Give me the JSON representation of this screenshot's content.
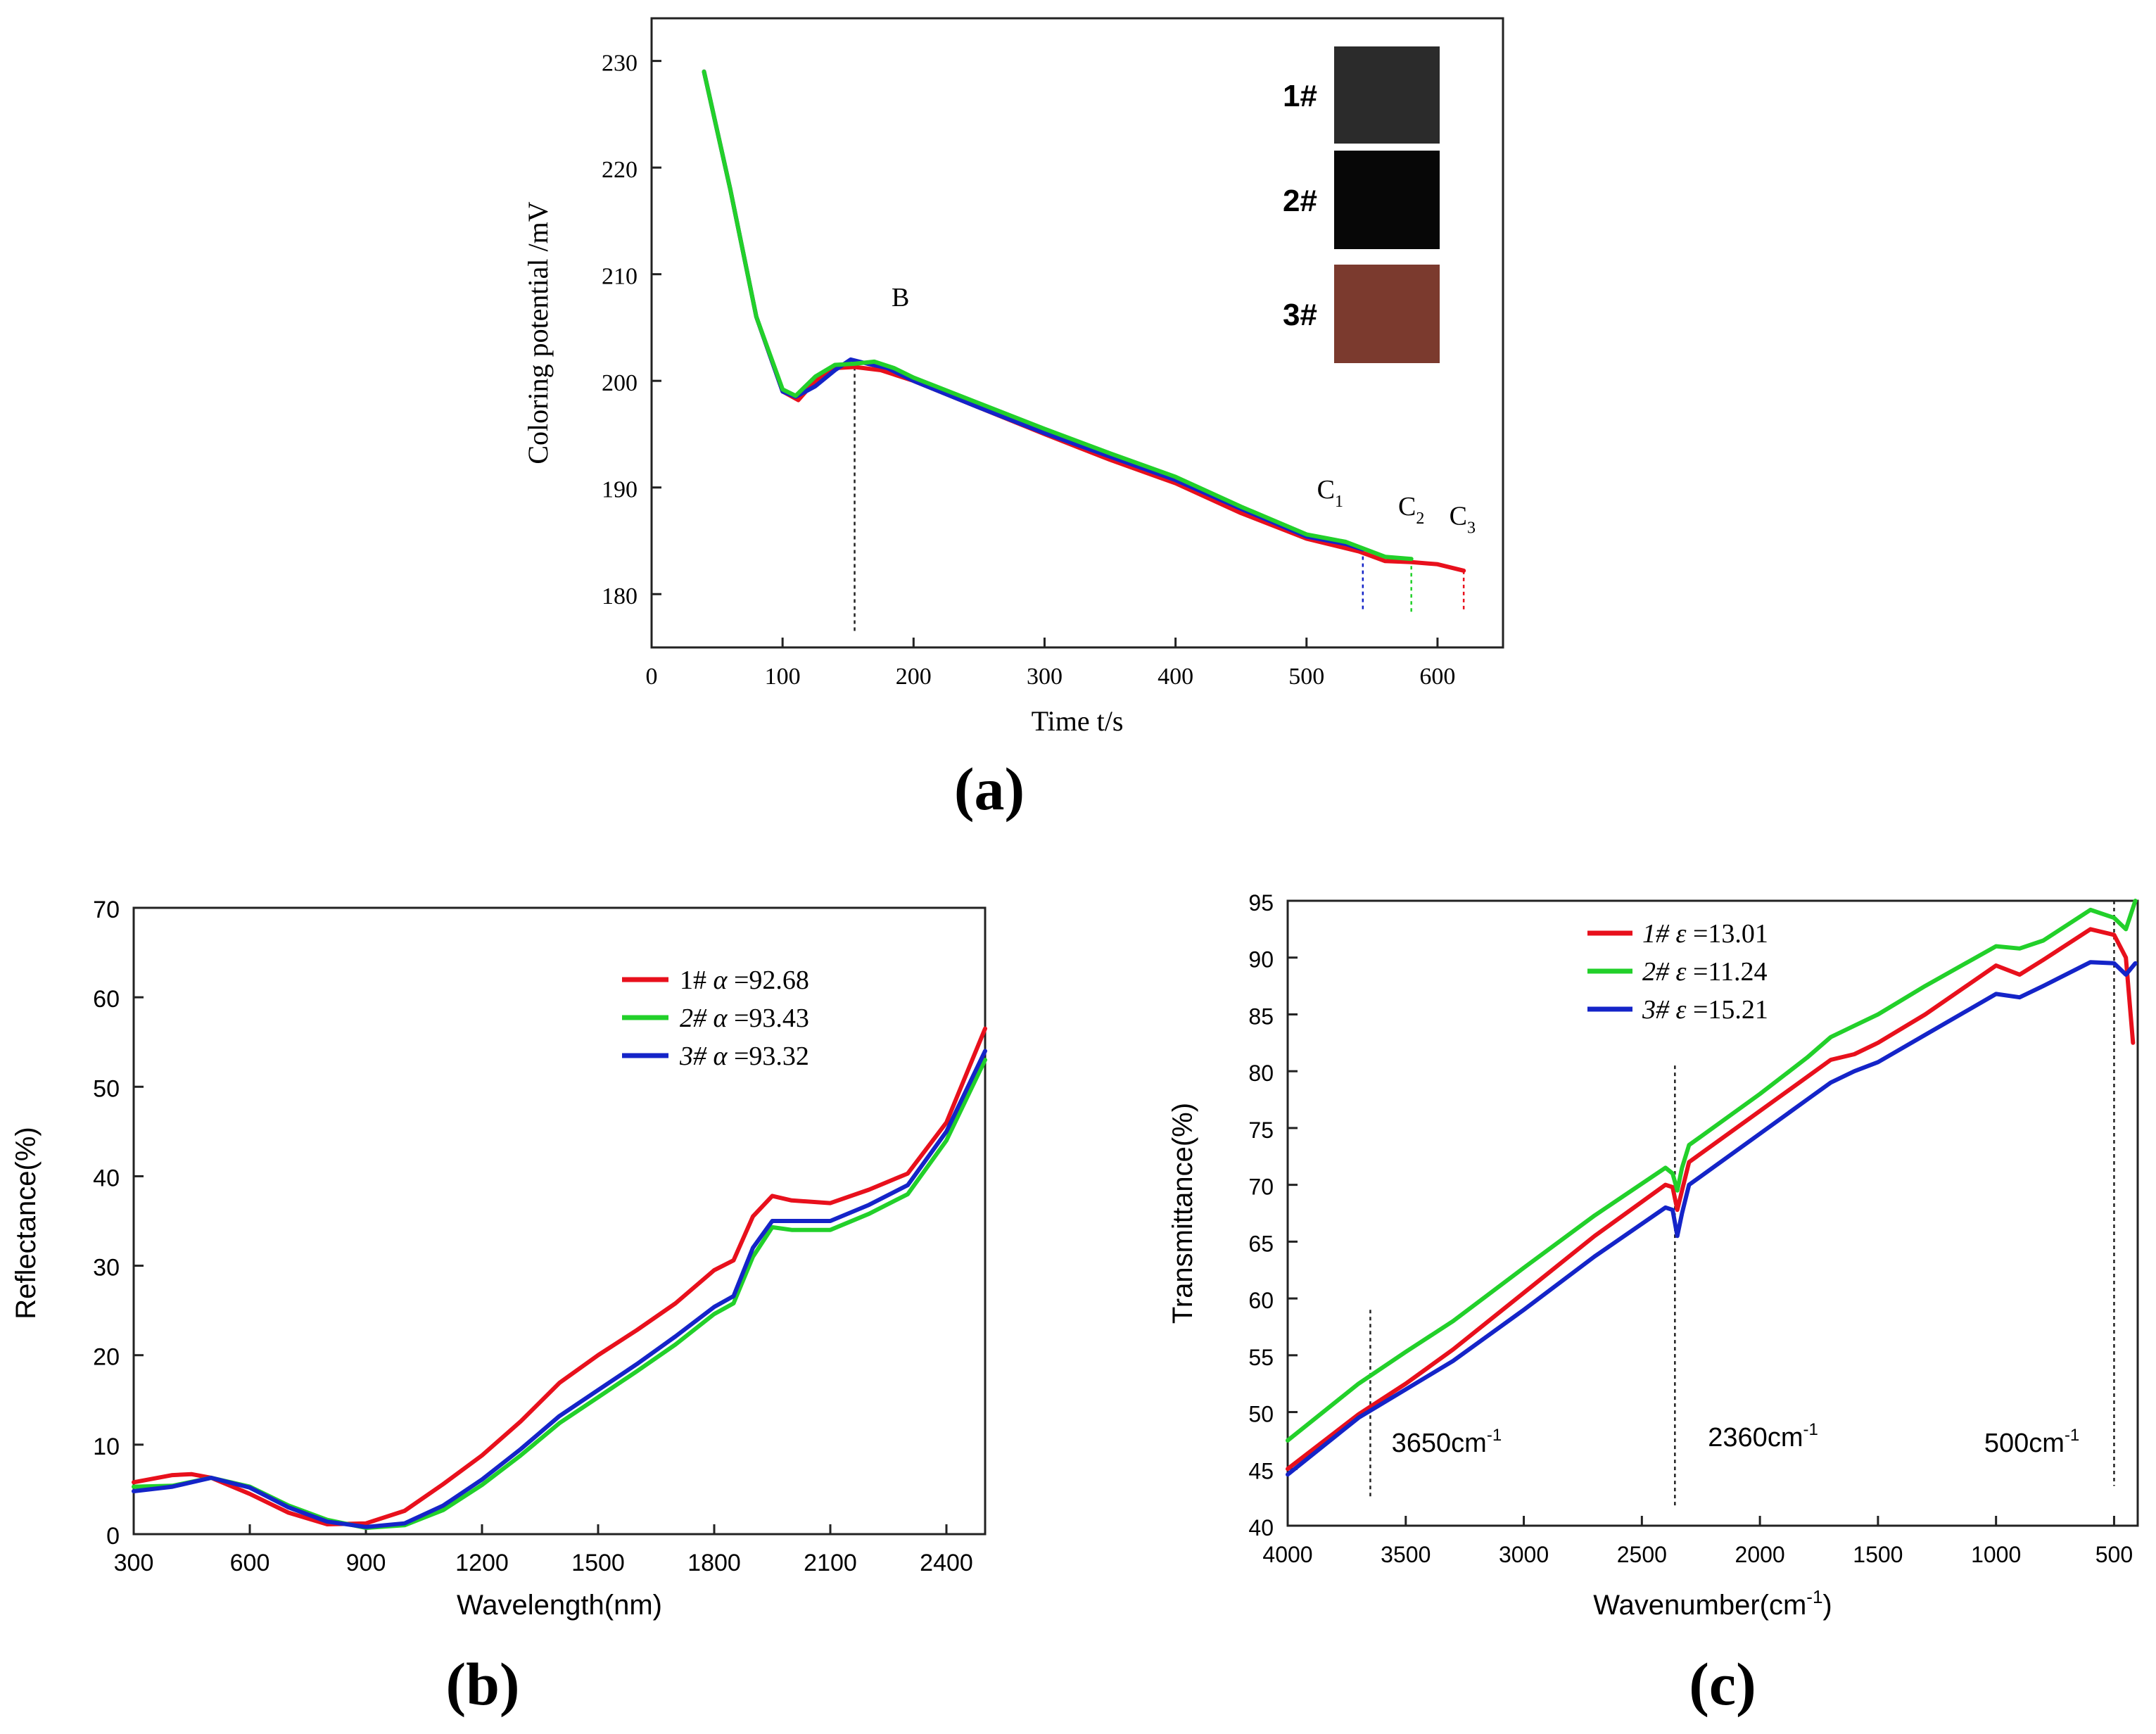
{
  "chart_data": [
    {
      "id": "a",
      "type": "line",
      "panel_label": "(a)",
      "xlabel": "Time t/s",
      "ylabel": "Coloring potential /mV",
      "xlim": [
        0,
        650
      ],
      "ylim": [
        175,
        234
      ],
      "xticks": [
        0,
        100,
        200,
        300,
        400,
        500,
        600
      ],
      "yticks": [
        180,
        190,
        200,
        210,
        220,
        230
      ],
      "series": [
        {
          "name": "3#",
          "color": "#e8101c",
          "x": [
            40,
            60,
            80,
            100,
            112,
            125,
            140,
            155,
            175,
            200,
            250,
            300,
            350,
            400,
            450,
            500,
            540,
            560,
            580,
            600,
            620
          ],
          "y": [
            229,
            218,
            206,
            199,
            198.2,
            200,
            201.2,
            201.3,
            201,
            200,
            197.5,
            195,
            192.6,
            190.4,
            187.6,
            185.2,
            184,
            183.1,
            183,
            182.8,
            182.2
          ]
        },
        {
          "name": "1#",
          "color": "#1424c8",
          "x": [
            40,
            60,
            80,
            100,
            110,
            125,
            140,
            152,
            165,
            180,
            200,
            250,
            300,
            350,
            400,
            450,
            500,
            530,
            543
          ],
          "y": [
            229,
            218,
            206,
            199,
            198.5,
            199.5,
            201,
            202,
            201.6,
            201.2,
            200,
            197.5,
            195.1,
            192.9,
            190.7,
            188,
            185.4,
            184.7,
            184.2
          ]
        },
        {
          "name": "2#",
          "color": "#22d02a",
          "x": [
            40,
            60,
            80,
            100,
            110,
            125,
            140,
            155,
            170,
            185,
            200,
            250,
            300,
            350,
            400,
            450,
            500,
            530,
            560,
            580
          ],
          "y": [
            229,
            218,
            206,
            199.2,
            198.6,
            200.4,
            201.5,
            201.6,
            201.8,
            201.2,
            200.3,
            197.9,
            195.5,
            193.2,
            191,
            188.2,
            185.6,
            184.9,
            183.5,
            183.3
          ]
        }
      ],
      "vlines": [
        {
          "x": 155,
          "y_top": 201.3,
          "color": "#222222"
        },
        {
          "x": 543,
          "y_top": 184.2,
          "color": "#1424c8"
        },
        {
          "x": 580,
          "y_top": 183.3,
          "color": "#22d02a"
        },
        {
          "x": 620,
          "y_top": 182.2,
          "color": "#e8101c"
        }
      ],
      "annotations": [
        {
          "text": "B",
          "x": 190,
          "y": 207
        },
        {
          "text": "C",
          "sub": "1",
          "x": 518,
          "y": 189
        },
        {
          "text": "C",
          "sub": "2",
          "x": 580,
          "y": 187.4
        },
        {
          "text": "C",
          "sub": "3",
          "x": 619,
          "y": 186.5
        }
      ],
      "inset": [
        {
          "label": "1#",
          "color": "#2b2b2b"
        },
        {
          "label": "2#",
          "color": "#070707"
        },
        {
          "label": "3#",
          "color": "#7b3a2e"
        }
      ]
    },
    {
      "id": "b",
      "type": "line",
      "panel_label": "(b)",
      "xlabel": "Wavelength(nm)",
      "ylabel": "Reflectance(%)",
      "xlim": [
        300,
        2500
      ],
      "ylim": [
        0,
        70
      ],
      "xticks": [
        300,
        600,
        900,
        1200,
        1500,
        1800,
        2100,
        2400
      ],
      "yticks": [
        0,
        10,
        20,
        30,
        40,
        50,
        60,
        70
      ],
      "series": [
        {
          "name": "1#",
          "legend_symbol": "α",
          "legend_value": "=92.68",
          "color": "#e8101c",
          "x": [
            300,
            400,
            450,
            500,
            600,
            700,
            800,
            900,
            1000,
            1100,
            1200,
            1300,
            1400,
            1500,
            1600,
            1700,
            1800,
            1850,
            1900,
            1950,
            2000,
            2100,
            2200,
            2300,
            2400,
            2500
          ],
          "y": [
            5.8,
            6.6,
            6.7,
            6.3,
            4.5,
            2.4,
            1.1,
            1.2,
            2.6,
            5.6,
            8.8,
            12.6,
            16.9,
            20,
            22.8,
            25.8,
            29.5,
            30.6,
            35.5,
            37.8,
            37.3,
            37,
            38.5,
            40.3,
            46,
            56.5
          ]
        },
        {
          "name": "2#",
          "legend_symbol": "α",
          "legend_value": "=93.43",
          "color": "#22d02a",
          "x": [
            300,
            400,
            500,
            600,
            700,
            800,
            900,
            1000,
            1100,
            1200,
            1300,
            1400,
            1500,
            1600,
            1700,
            1800,
            1850,
            1900,
            1950,
            2000,
            2100,
            2200,
            2300,
            2400,
            2500
          ],
          "y": [
            5.3,
            5.4,
            6.3,
            5.3,
            3.2,
            1.6,
            0.7,
            1,
            2.7,
            5.5,
            8.8,
            12.4,
            15.3,
            18.2,
            21.2,
            24.6,
            25.8,
            31,
            34.3,
            34,
            34,
            35.8,
            38,
            44,
            53
          ]
        },
        {
          "name": "3#",
          "legend_symbol": "α",
          "legend_value": "=93.32",
          "color": "#1424c8",
          "x": [
            300,
            400,
            500,
            600,
            700,
            800,
            900,
            1000,
            1100,
            1200,
            1300,
            1400,
            1500,
            1600,
            1700,
            1800,
            1850,
            1900,
            1950,
            2000,
            2100,
            2200,
            2300,
            2400,
            2500
          ],
          "y": [
            4.8,
            5.3,
            6.3,
            5.2,
            3,
            1.4,
            0.8,
            1.2,
            3.2,
            6.1,
            9.5,
            13.2,
            16.1,
            19,
            22.1,
            25.4,
            26.6,
            32,
            35,
            35,
            35,
            36.8,
            39,
            45,
            54
          ]
        }
      ]
    },
    {
      "id": "c",
      "type": "line",
      "panel_label": "(c)",
      "xlabel": "Wavenumber(cm",
      "xlabel_sup": "-1",
      "xlabel_end": ")",
      "ylabel": "Transmittance(%)",
      "xlim": [
        4000,
        400
      ],
      "ylim": [
        40,
        95
      ],
      "xticks": [
        4000,
        3500,
        3000,
        2500,
        2000,
        1500,
        1000,
        500
      ],
      "yticks": [
        40,
        45,
        50,
        55,
        60,
        65,
        70,
        75,
        80,
        85,
        90,
        95
      ],
      "series": [
        {
          "name": "1#",
          "legend_symbol": "ε",
          "legend_value": "=13.01",
          "color": "#e8101c",
          "x": [
            4000,
            3700,
            3500,
            3300,
            3000,
            2700,
            2400,
            2370,
            2350,
            2330,
            2300,
            2000,
            1800,
            1700,
            1600,
            1500,
            1300,
            1000,
            900,
            800,
            600,
            500,
            450,
            420
          ],
          "y": [
            45,
            49.8,
            52.5,
            55.5,
            60.5,
            65.5,
            70,
            69.8,
            67.8,
            69.5,
            72,
            76.5,
            79.5,
            81,
            81.5,
            82.5,
            85,
            89.3,
            88.5,
            89.8,
            92.5,
            92,
            90,
            82.5
          ]
        },
        {
          "name": "2#",
          "legend_symbol": "ε",
          "legend_value": "=11.24",
          "color": "#22d02a",
          "x": [
            4000,
            3700,
            3500,
            3300,
            3000,
            2700,
            2400,
            2370,
            2350,
            2330,
            2300,
            2000,
            1800,
            1700,
            1600,
            1500,
            1300,
            1000,
            900,
            800,
            600,
            500,
            450,
            410
          ],
          "y": [
            47.5,
            52.5,
            55.3,
            58,
            62.7,
            67.3,
            71.5,
            71,
            69.5,
            71.5,
            73.5,
            78,
            81.2,
            83,
            84,
            85,
            87.5,
            91,
            90.8,
            91.5,
            94.2,
            93.5,
            92.5,
            95
          ]
        },
        {
          "name": "3#",
          "legend_symbol": "ε",
          "legend_value": "=15.21",
          "color": "#1424c8",
          "x": [
            4000,
            3700,
            3500,
            3300,
            3000,
            2700,
            2400,
            2370,
            2350,
            2330,
            2300,
            2000,
            1800,
            1700,
            1600,
            1500,
            1300,
            1000,
            900,
            800,
            600,
            500,
            450,
            410
          ],
          "y": [
            44.5,
            49.5,
            52,
            54.5,
            59,
            63.7,
            68,
            67.8,
            65.5,
            67.5,
            70,
            74.5,
            77.5,
            79,
            80,
            80.8,
            83.2,
            86.8,
            86.5,
            87.5,
            89.6,
            89.5,
            88.5,
            89.5
          ]
        }
      ],
      "vlines": [
        {
          "x": 3650,
          "y_bottom": 42.5,
          "y_top": 59,
          "label": "3650cm",
          "sup": "-1",
          "label_x": 3560,
          "label_y": 46.5
        },
        {
          "x": 2360,
          "y_bottom": 41.5,
          "y_top": 80.5,
          "label": "2360cm",
          "sup": "-1",
          "label_x": 2220,
          "label_y": 47
        },
        {
          "x": 500,
          "y_bottom": 43.5,
          "y_top": 95,
          "label": "500cm",
          "sup": "-1",
          "label_x": 1050,
          "label_y": 46.5
        }
      ]
    }
  ]
}
